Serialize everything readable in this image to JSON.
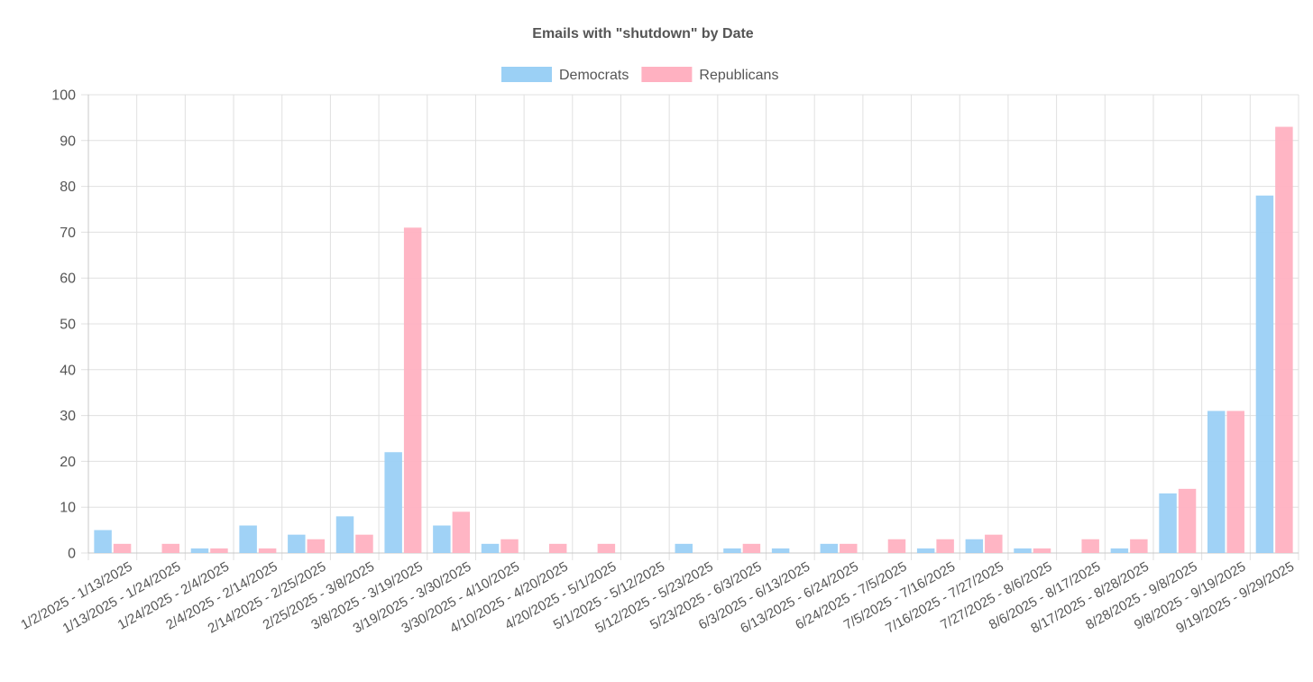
{
  "chart_data": {
    "type": "bar",
    "title": "Emails with \"shutdown\" by Date",
    "xlabel": "",
    "ylabel": "",
    "ylim": [
      0,
      100
    ],
    "yticks": [
      0,
      10,
      20,
      30,
      40,
      50,
      60,
      70,
      80,
      90,
      100
    ],
    "grid": true,
    "legend_position": "top-center",
    "categories": [
      "1/2/2025 - 1/13/2025",
      "1/13/2025 - 1/24/2025",
      "1/24/2025 - 2/4/2025",
      "2/4/2025 - 2/14/2025",
      "2/14/2025 - 2/25/2025",
      "2/25/2025 - 3/8/2025",
      "3/8/2025 - 3/19/2025",
      "3/19/2025 - 3/30/2025",
      "3/30/2025 - 4/10/2025",
      "4/10/2025 - 4/20/2025",
      "4/20/2025 - 5/1/2025",
      "5/1/2025 - 5/12/2025",
      "5/12/2025 - 5/23/2025",
      "5/23/2025 - 6/3/2025",
      "6/3/2025 - 6/13/2025",
      "6/13/2025 - 6/24/2025",
      "6/24/2025 - 7/5/2025",
      "7/5/2025 - 7/16/2025",
      "7/16/2025 - 7/27/2025",
      "7/27/2025 - 8/6/2025",
      "8/6/2025 - 8/17/2025",
      "8/17/2025 - 8/28/2025",
      "8/28/2025 - 9/8/2025",
      "9/8/2025 - 9/19/2025",
      "9/19/2025 - 9/29/2025"
    ],
    "series": [
      {
        "name": "Democrats",
        "color": "#9BD0F5",
        "values": [
          5,
          0,
          1,
          6,
          4,
          8,
          22,
          6,
          2,
          0,
          0,
          0,
          2,
          1,
          1,
          2,
          0,
          1,
          3,
          1,
          0,
          1,
          13,
          31,
          78
        ]
      },
      {
        "name": "Republicans",
        "color": "#FFB1C1",
        "values": [
          2,
          2,
          1,
          1,
          3,
          4,
          71,
          9,
          3,
          2,
          2,
          0,
          0,
          2,
          0,
          2,
          3,
          3,
          4,
          1,
          3,
          3,
          14,
          31,
          93
        ]
      }
    ]
  }
}
